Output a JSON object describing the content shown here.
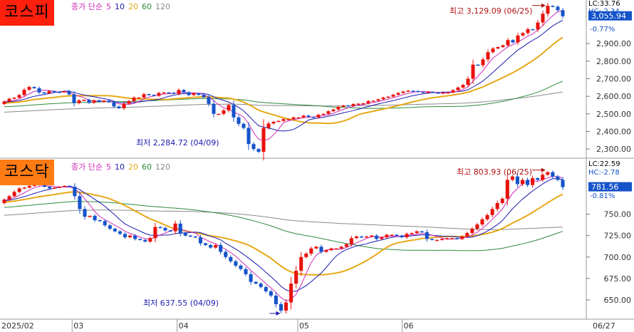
{
  "colors": {
    "up": "#e8120c",
    "down": "#1553c9",
    "ma5": "#cc2db8",
    "ma10": "#1b1bb0",
    "ma20": "#e6a817",
    "ma60": "#2e8b3a",
    "ma120": "#8a8a8a",
    "kospi_badge": "#ff1f0d",
    "kosdaq_badge": "#ff7b14",
    "price_box": "#1553c9"
  },
  "legend": {
    "label": "종가 단순",
    "periods": [
      "5",
      "10",
      "20",
      "60",
      "120"
    ]
  },
  "kospi": {
    "name": "코스피",
    "lc": "LC:33.76",
    "hc": "HC:-2.34",
    "price": "3,055.94",
    "change": "-0.77%",
    "high_note": "최고 3,129.09 (06/25)",
    "low_note": "최저 2,284.72 (04/09)",
    "ticks": [
      "2,900.00",
      "2,800.00",
      "2,700.00",
      "2,600.00",
      "2,500.00",
      "2,400.00",
      "2,300.00"
    ]
  },
  "kosdaq": {
    "name": "코스닥",
    "lc": "LC:22.59",
    "hc": "HC:-2.78",
    "price": "781.56",
    "change": "-0.81%",
    "high_note": "최고 803.93 (06/25)",
    "low_note": "최저 637.55 (04/09)",
    "ticks": [
      "750.00",
      "725.00",
      "700.00",
      "675.00",
      "650.00"
    ]
  },
  "xaxis": {
    "labels": [
      "2025/02",
      "03",
      "04",
      "05",
      "06"
    ],
    "last_date": "06/27"
  },
  "chart_data": [
    {
      "type": "candlestick",
      "title": "코스피",
      "ylim": [
        2260,
        3140
      ],
      "high": {
        "value": 3129.09,
        "date": "06/25"
      },
      "low": {
        "value": 2284.72,
        "date": "04/09"
      },
      "last": 3055.94,
      "ma_periods": [
        5,
        10,
        20,
        60,
        120
      ],
      "close": [
        2571,
        2586,
        2592,
        2607,
        2637,
        2653,
        2646,
        2622,
        2617,
        2630,
        2625,
        2623,
        2629,
        2611,
        2561,
        2577,
        2580,
        2563,
        2577,
        2568,
        2575,
        2566,
        2542,
        2532,
        2558,
        2573,
        2593,
        2593,
        2612,
        2608,
        2603,
        2619,
        2622,
        2620,
        2614,
        2636,
        2623,
        2607,
        2617,
        2608,
        2595,
        2557,
        2500,
        2500,
        2520,
        2550,
        2480,
        2443,
        2420,
        2328,
        2300,
        2284,
        2420,
        2445,
        2455,
        2460,
        2470,
        2470,
        2480,
        2480,
        2490,
        2483,
        2480,
        2495,
        2500,
        2515,
        2525,
        2540,
        2548,
        2545,
        2556,
        2558,
        2560,
        2573,
        2575,
        2583,
        2593,
        2598,
        2609,
        2619,
        2627,
        2632,
        2630,
        2625,
        2622,
        2625,
        2621,
        2617,
        2620,
        2622,
        2635,
        2650,
        2665,
        2700,
        2780,
        2777,
        2810,
        2851,
        2872,
        2880,
        2890,
        2920,
        2907,
        2946,
        2960,
        2982,
        2980,
        3020,
        3070,
        3115,
        3110,
        3090,
        3055.94
      ]
    },
    {
      "type": "candlestick",
      "title": "코스닥",
      "ylim": [
        630,
        812
      ],
      "high": {
        "value": 803.93,
        "date": "06/25"
      },
      "low": {
        "value": 637.55,
        "date": "04/09"
      },
      "last": 781.56,
      "ma_periods": [
        5,
        10,
        20,
        60,
        120
      ],
      "close": [
        767,
        771,
        776,
        780,
        781,
        783,
        785,
        784,
        782,
        780,
        781,
        782,
        783,
        782,
        771,
        756,
        747,
        748,
        743,
        742,
        737,
        733,
        730,
        727,
        723,
        725,
        721,
        720,
        718,
        722,
        735,
        734,
        731,
        730,
        739,
        728,
        725,
        724,
        723,
        716,
        714,
        711,
        714,
        706,
        700,
        695,
        690,
        686,
        680,
        671,
        669,
        665,
        660,
        655,
        645,
        637.55,
        647,
        669,
        684,
        700,
        704,
        710,
        712,
        706,
        708,
        710,
        710,
        712,
        715,
        722,
        724,
        723,
        724,
        725,
        721,
        723,
        726,
        726,
        725,
        723,
        727,
        728,
        730,
        729,
        721,
        720,
        720,
        721,
        722,
        722,
        721,
        724,
        728,
        733,
        738,
        744,
        749,
        756,
        763,
        768,
        790,
        794,
        785,
        790,
        784,
        792,
        790,
        796,
        799,
        794,
        790,
        781.56
      ]
    }
  ]
}
